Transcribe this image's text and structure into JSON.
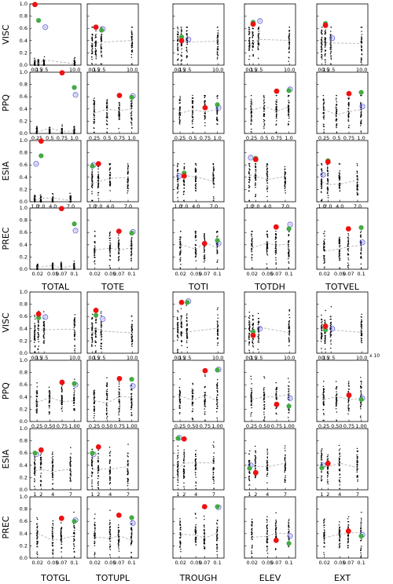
{
  "chart_data": {
    "type": "scatter",
    "grid": false,
    "blocks": [
      {
        "row_labels": [
          "VISC",
          "PPQ",
          "ESIA",
          "PREC"
        ],
        "col_labels": [
          "TOTAL",
          "TOTE",
          "TOTI",
          "TOTDH",
          "TOTVEL"
        ],
        "y_ticks": [
          "0.0",
          "0.2",
          "0.4",
          "0.6",
          "0.8",
          "1.0"
        ],
        "x_ticks": {
          "VISC": [
            "0.1",
            "0.5",
            "2.5",
            "10.0"
          ],
          "PPQ": [
            "0.25",
            "0.5",
            "0.75",
            "1.0"
          ],
          "ESIA": [
            "1.0",
            "2.0",
            "4.0",
            "7.0"
          ],
          "PREC": [
            "0.02",
            "0.05",
            "0.07",
            "0.1"
          ]
        }
      },
      {
        "row_labels": [
          "VISC",
          "PPQ",
          "ESIA",
          "PREC"
        ],
        "col_labels": [
          "TOTGL",
          "TOTUPL",
          "TROUGH",
          "ELEV",
          "EXT"
        ],
        "y_ticks": [
          "0.0",
          "0.2",
          "0.4",
          "0.6",
          "0.8",
          "1.0"
        ],
        "x_ticks": {
          "VISC": [
            "0.1",
            "0.5",
            "2.5",
            "10.0"
          ],
          "PPQ": [
            "0.25",
            "0.50",
            "0.75",
            "1.00"
          ],
          "ESIA": [
            "1",
            "2",
            "4",
            "7"
          ],
          "PREC": [
            "0.02",
            "0.05",
            "0.07",
            "0.1"
          ]
        }
      }
    ],
    "offset_text": "x 10",
    "colors": {
      "red": "#ee1111",
      "green": "#44aa44",
      "blue_ring": "#6666dd",
      "cloud": "#000000",
      "trend": "#aaaaaa"
    },
    "highlight_points": [
      {
        "block": 0,
        "row": 0,
        "col": 0,
        "red": [
          0.1,
          0.99
        ],
        "green": [
          0.5,
          0.73
        ],
        "blue": [
          2.5,
          0.62
        ]
      },
      {
        "block": 0,
        "row": 0,
        "col": 1,
        "red": [
          0.5,
          0.62
        ],
        "green": [
          2.5,
          0.57
        ],
        "blue": [
          2.5,
          0.59
        ]
      },
      {
        "block": 0,
        "row": 0,
        "col": 2,
        "red": [
          0.5,
          0.4
        ],
        "green": [
          0.5,
          0.46
        ],
        "blue": [
          2.5,
          0.42
        ]
      },
      {
        "block": 0,
        "row": 0,
        "col": 3,
        "red": [
          0.5,
          0.67
        ],
        "green": [
          0.5,
          0.7
        ],
        "blue": [
          2.5,
          0.72
        ]
      },
      {
        "block": 0,
        "row": 0,
        "col": 4,
        "red": [
          0.5,
          0.65
        ],
        "green": [
          0.5,
          0.68
        ],
        "blue": [
          2.5,
          0.44
        ]
      },
      {
        "block": 0,
        "row": 1,
        "col": 0,
        "red": [
          0.75,
          0.99
        ],
        "green": [
          1.0,
          0.75
        ],
        "blue": [
          1.0,
          0.63
        ]
      },
      {
        "block": 0,
        "row": 1,
        "col": 1,
        "red": [
          0.75,
          0.62
        ],
        "green": [
          1.0,
          0.59
        ],
        "blue": [
          1.0,
          0.61
        ]
      },
      {
        "block": 0,
        "row": 1,
        "col": 2,
        "red": [
          0.75,
          0.42
        ],
        "green": [
          1.0,
          0.47
        ],
        "blue": [
          1.0,
          0.42
        ]
      },
      {
        "block": 0,
        "row": 1,
        "col": 3,
        "red": [
          0.75,
          0.69
        ],
        "green": [
          1.0,
          0.7
        ],
        "blue": [
          1.0,
          0.72
        ]
      },
      {
        "block": 0,
        "row": 1,
        "col": 4,
        "red": [
          0.75,
          0.65
        ],
        "green": [
          1.0,
          0.67
        ],
        "blue": [
          1.0,
          0.44
        ]
      },
      {
        "block": 0,
        "row": 2,
        "col": 0,
        "red": [
          2.0,
          0.99
        ],
        "green": [
          2.0,
          0.75
        ],
        "blue": [
          1.0,
          0.62
        ]
      },
      {
        "block": 0,
        "row": 2,
        "col": 1,
        "red": [
          2.0,
          0.62
        ],
        "green": [
          1.0,
          0.58
        ],
        "blue": [
          1.0,
          0.6
        ]
      },
      {
        "block": 0,
        "row": 2,
        "col": 2,
        "red": [
          2.0,
          0.42
        ],
        "green": [
          2.0,
          0.47
        ],
        "blue": [
          1.0,
          0.42
        ]
      },
      {
        "block": 0,
        "row": 2,
        "col": 3,
        "red": [
          2.0,
          0.69
        ],
        "green": [
          2.0,
          0.71
        ],
        "blue": [
          1.0,
          0.72
        ]
      },
      {
        "block": 0,
        "row": 2,
        "col": 4,
        "red": [
          2.0,
          0.65
        ],
        "green": [
          2.0,
          0.67
        ],
        "blue": [
          1.0,
          0.44
        ]
      },
      {
        "block": 0,
        "row": 3,
        "col": 0,
        "red": [
          0.07,
          0.99
        ],
        "green": [
          0.1,
          0.74
        ],
        "blue": [
          0.1,
          0.63
        ]
      },
      {
        "block": 0,
        "row": 3,
        "col": 1,
        "red": [
          0.07,
          0.62
        ],
        "green": [
          0.1,
          0.59
        ],
        "blue": [
          0.1,
          0.61
        ]
      },
      {
        "block": 0,
        "row": 3,
        "col": 2,
        "red": [
          0.07,
          0.42
        ],
        "green": [
          0.1,
          0.47
        ],
        "blue": [
          0.1,
          0.42
        ]
      },
      {
        "block": 0,
        "row": 3,
        "col": 3,
        "red": [
          0.07,
          0.69
        ],
        "green": [
          0.1,
          0.66
        ],
        "blue": [
          0.1,
          0.73
        ]
      },
      {
        "block": 0,
        "row": 3,
        "col": 4,
        "red": [
          0.07,
          0.66
        ],
        "green": [
          0.1,
          0.68
        ],
        "blue": [
          0.1,
          0.44
        ]
      },
      {
        "block": 1,
        "row": 0,
        "col": 0,
        "red": [
          0.5,
          0.64
        ],
        "green": [
          0.5,
          0.58
        ],
        "blue": [
          2.5,
          0.59
        ]
      },
      {
        "block": 1,
        "row": 0,
        "col": 1,
        "red": [
          0.5,
          0.7
        ],
        "green": [
          0.5,
          0.62
        ],
        "blue": [
          2.5,
          0.56
        ]
      },
      {
        "block": 1,
        "row": 0,
        "col": 2,
        "red": [
          0.5,
          0.83
        ],
        "green": [
          2.5,
          0.83
        ],
        "blue": [
          2.5,
          0.85
        ]
      },
      {
        "block": 1,
        "row": 0,
        "col": 3,
        "red": [
          0.5,
          0.29
        ],
        "green": [
          0.5,
          0.35
        ],
        "blue": [
          2.5,
          0.4
        ]
      },
      {
        "block": 1,
        "row": 0,
        "col": 4,
        "red": [
          0.5,
          0.44
        ],
        "green": [
          0.5,
          0.38
        ],
        "blue": [
          2.5,
          0.4
        ]
      },
      {
        "block": 1,
        "row": 1,
        "col": 0,
        "red": [
          0.75,
          0.64
        ],
        "green": [
          1.0,
          0.62
        ],
        "blue": [
          1.0,
          0.6
        ]
      },
      {
        "block": 1,
        "row": 1,
        "col": 1,
        "red": [
          0.75,
          0.7
        ],
        "green": [
          1.0,
          0.69
        ],
        "blue": [
          1.0,
          0.58
        ]
      },
      {
        "block": 1,
        "row": 1,
        "col": 2,
        "red": [
          0.75,
          0.83
        ],
        "green": [
          1.0,
          0.84
        ],
        "blue": [
          1.0,
          0.85
        ]
      },
      {
        "block": 1,
        "row": 1,
        "col": 3,
        "red": [
          0.75,
          0.28
        ],
        "green": [
          1.0,
          0.25
        ],
        "blue": [
          1.0,
          0.38
        ]
      },
      {
        "block": 1,
        "row": 1,
        "col": 4,
        "red": [
          0.75,
          0.43
        ],
        "green": [
          1.0,
          0.36
        ],
        "blue": [
          1.0,
          0.38
        ]
      },
      {
        "block": 1,
        "row": 2,
        "col": 0,
        "red": [
          2,
          0.65
        ],
        "green": [
          1,
          0.6
        ],
        "blue": [
          1,
          0.58
        ]
      },
      {
        "block": 1,
        "row": 2,
        "col": 1,
        "red": [
          2,
          0.7
        ],
        "green": [
          1,
          0.6
        ],
        "blue": [
          1,
          0.58
        ]
      },
      {
        "block": 1,
        "row": 2,
        "col": 2,
        "red": [
          2,
          0.83
        ],
        "green": [
          1,
          0.84
        ],
        "blue": [
          1,
          0.85
        ]
      },
      {
        "block": 1,
        "row": 2,
        "col": 3,
        "red": [
          2,
          0.28
        ],
        "green": [
          1,
          0.35
        ],
        "blue": [
          1,
          0.4
        ]
      },
      {
        "block": 1,
        "row": 2,
        "col": 4,
        "red": [
          2,
          0.43
        ],
        "green": [
          1,
          0.36
        ],
        "blue": [
          1,
          0.4
        ]
      },
      {
        "block": 1,
        "row": 3,
        "col": 0,
        "red": [
          0.07,
          0.65
        ],
        "green": [
          0.1,
          0.6
        ],
        "blue": [
          0.1,
          0.62
        ]
      },
      {
        "block": 1,
        "row": 3,
        "col": 1,
        "red": [
          0.07,
          0.7
        ],
        "green": [
          0.1,
          0.66
        ],
        "blue": [
          0.1,
          0.57
        ]
      },
      {
        "block": 1,
        "row": 3,
        "col": 2,
        "red": [
          0.07,
          0.84
        ],
        "green": [
          0.1,
          0.84
        ],
        "blue": [
          0.1,
          0.83
        ]
      },
      {
        "block": 1,
        "row": 3,
        "col": 3,
        "red": [
          0.07,
          0.29
        ],
        "green": [
          0.1,
          0.24
        ],
        "blue": [
          0.1,
          0.36
        ]
      },
      {
        "block": 1,
        "row": 3,
        "col": 4,
        "red": [
          0.07,
          0.44
        ],
        "green": [
          0.1,
          0.36
        ],
        "blue": [
          0.1,
          0.38
        ]
      }
    ]
  }
}
